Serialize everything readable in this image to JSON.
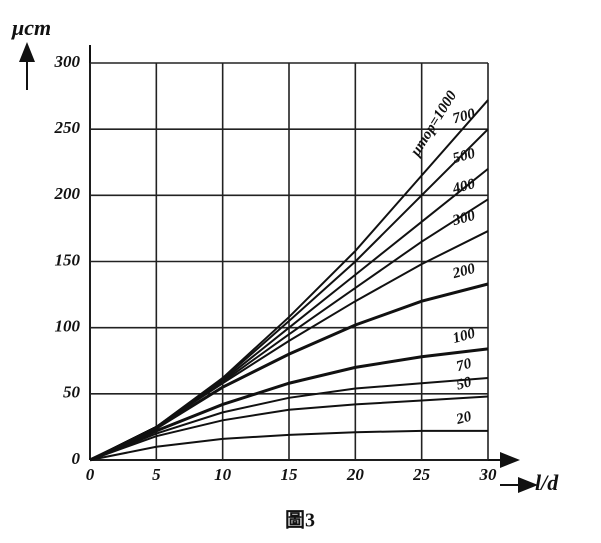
{
  "chart_data": {
    "type": "line",
    "y_label": "μст",
    "x_label": "l/d",
    "caption": "圖3",
    "x": [
      0,
      5,
      10,
      15,
      20,
      25,
      30
    ],
    "xlim": [
      0,
      30
    ],
    "xticks": [
      0,
      5,
      10,
      15,
      20,
      25,
      30
    ],
    "ylim": [
      0,
      300
    ],
    "yticks": [
      0,
      50,
      100,
      150,
      200,
      250,
      300
    ],
    "grid": true,
    "color": "#111111",
    "series": [
      {
        "name": "μтор=1000",
        "values": [
          0,
          25,
          62,
          108,
          158,
          215,
          272
        ]
      },
      {
        "name": "700",
        "values": [
          0,
          25,
          61,
          105,
          150,
          200,
          250
        ]
      },
      {
        "name": "500",
        "values": [
          0,
          25,
          60,
          100,
          140,
          180,
          220
        ]
      },
      {
        "name": "400",
        "values": [
          0,
          25,
          59,
          95,
          130,
          165,
          197
        ]
      },
      {
        "name": "300",
        "values": [
          0,
          25,
          58,
          90,
          120,
          148,
          173
        ]
      },
      {
        "name": "200",
        "values": [
          0,
          24,
          55,
          80,
          102,
          120,
          133
        ]
      },
      {
        "name": "100",
        "values": [
          0,
          22,
          42,
          58,
          70,
          78,
          84
        ]
      },
      {
        "name": "70",
        "values": [
          0,
          20,
          36,
          47,
          54,
          58,
          62
        ]
      },
      {
        "name": "50",
        "values": [
          0,
          18,
          30,
          38,
          42,
          45,
          48
        ]
      },
      {
        "name": "20",
        "values": [
          0,
          10,
          16,
          19,
          21,
          22,
          22
        ]
      }
    ]
  }
}
